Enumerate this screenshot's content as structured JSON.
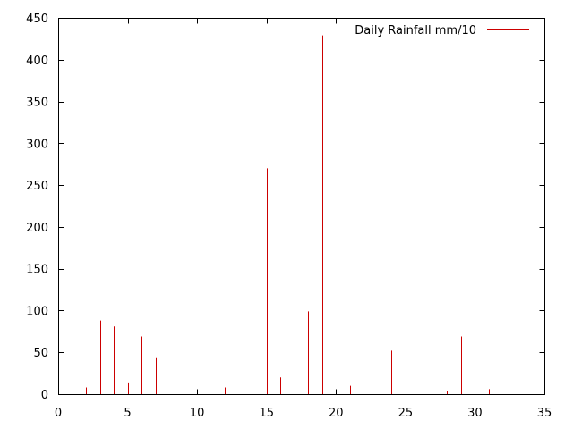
{
  "chart_data": {
    "type": "bar",
    "style": "impulses",
    "title": "",
    "xlabel": "",
    "ylabel": "",
    "xlim": [
      0,
      35
    ],
    "ylim": [
      0,
      450
    ],
    "x_ticks": [
      0,
      5,
      10,
      15,
      20,
      25,
      30,
      35
    ],
    "y_ticks": [
      0,
      50,
      100,
      150,
      200,
      250,
      300,
      350,
      400,
      450
    ],
    "grid": false,
    "legend_position": "top-right",
    "series": [
      {
        "name": "Daily Rainfall mm/10",
        "color": "#cc0000",
        "x": [
          1,
          2,
          3,
          4,
          5,
          6,
          7,
          8,
          9,
          10,
          11,
          12,
          13,
          14,
          15,
          16,
          17,
          18,
          19,
          20,
          21,
          22,
          23,
          24,
          25,
          26,
          27,
          28,
          29,
          30,
          31
        ],
        "y": [
          0,
          8,
          88,
          81,
          14,
          69,
          43,
          0,
          427,
          0,
          0,
          8,
          0,
          0,
          270,
          20,
          83,
          99,
          429,
          0,
          10,
          0,
          0,
          52,
          6,
          0,
          0,
          4,
          69,
          0,
          6
        ]
      }
    ]
  }
}
